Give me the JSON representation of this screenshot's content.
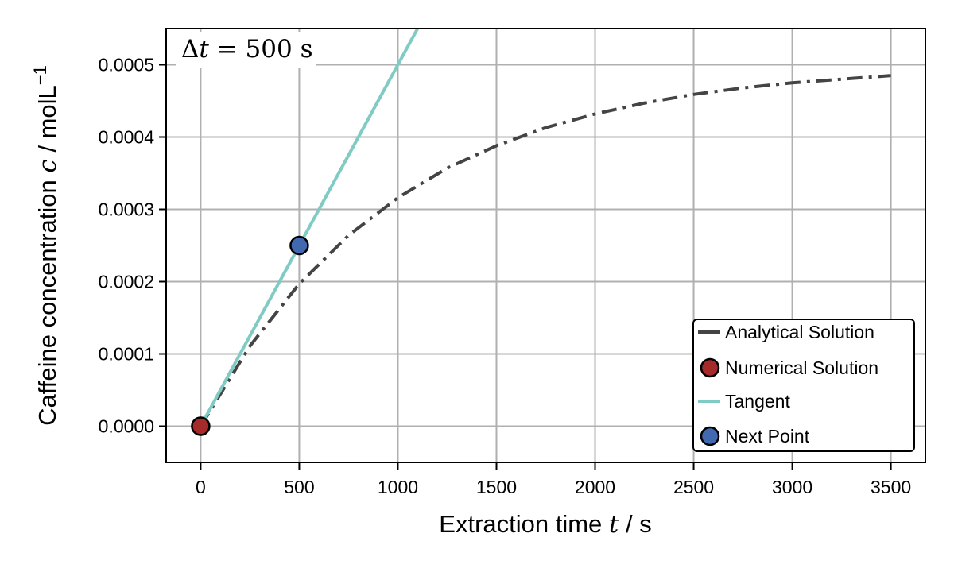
{
  "chart_data": {
    "type": "line",
    "xlabel_prefix": "Extraction time ",
    "xlabel_var": "t",
    "xlabel_unit": " / s",
    "ylabel_prefix": "Caffeine concentration ",
    "ylabel_var": "c",
    "ylabel_unit": " / molL",
    "ylabel_exp": "−1",
    "annotation_delta": "Δ",
    "annotation_var": "t",
    "annotation_eq": " = 500 s",
    "xlim": [
      -175,
      3675
    ],
    "ylim": [
      -5e-05,
      0.00055
    ],
    "xticks": [
      0,
      500,
      1000,
      1500,
      2000,
      2500,
      3000,
      3500
    ],
    "xtick_labels": [
      "0",
      "500",
      "1000",
      "1500",
      "2000",
      "2500",
      "3000",
      "3500"
    ],
    "yticks": [
      0,
      0.0001,
      0.0002,
      0.0003,
      0.0004,
      0.0005
    ],
    "ytick_labels": [
      "0.0000",
      "0.0001",
      "0.0002",
      "0.0003",
      "0.0004",
      "0.0005"
    ],
    "grid": true,
    "legend_position": "lower-right",
    "series": [
      {
        "name": "Analytical Solution",
        "kind": "line",
        "style": "dashdot",
        "color": "#444444",
        "x": [
          0,
          250,
          500,
          750,
          1000,
          1250,
          1500,
          1750,
          2000,
          2250,
          2500,
          2750,
          3000,
          3250,
          3500
        ],
        "y": [
          0,
          0.000111,
          0.000197,
          0.000264,
          0.000316,
          0.000357,
          0.000388,
          0.000413,
          0.000432,
          0.000447,
          0.000459,
          0.000468,
          0.000475,
          0.00048,
          0.000485
        ]
      },
      {
        "name": "Numerical Solution",
        "kind": "point",
        "color": "#a52a2a",
        "x": [
          0
        ],
        "y": [
          0
        ]
      },
      {
        "name": "Tangent",
        "kind": "line",
        "style": "solid",
        "color": "#80cbc4",
        "x": [
          0,
          1110
        ],
        "y": [
          0,
          0.000555
        ]
      },
      {
        "name": "Next Point",
        "kind": "point",
        "color": "#4169b0",
        "x": [
          500
        ],
        "y": [
          0.00025
        ]
      }
    ]
  }
}
